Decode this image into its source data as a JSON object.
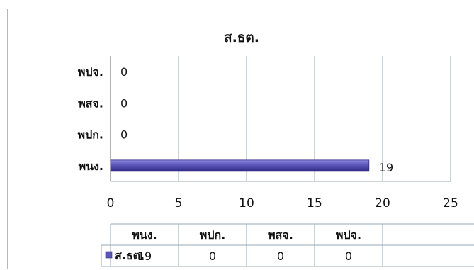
{
  "chart_data": {
    "type": "bar",
    "orientation": "horizontal",
    "title": "ส.ธต.",
    "categories": [
      "พนง.",
      "พปก.",
      "พสจ.",
      "พปจ."
    ],
    "series": [
      {
        "name": "ส.ธต.",
        "values": [
          19,
          0,
          0,
          0
        ],
        "color": "#5b55b8"
      }
    ],
    "xticks": [
      0,
      5,
      10,
      15,
      20,
      25
    ],
    "xlim": [
      0,
      25
    ],
    "grid": true,
    "legend": "data-table-left",
    "data_labels": [
      "19",
      "0",
      "0",
      "0"
    ],
    "data_table": {
      "headers": [
        "พนง.",
        "พปก.",
        "พสจ.",
        "พปจ."
      ],
      "row_label": "ส.ธต.",
      "row_values": [
        "19",
        "0",
        "0",
        "0"
      ]
    }
  }
}
